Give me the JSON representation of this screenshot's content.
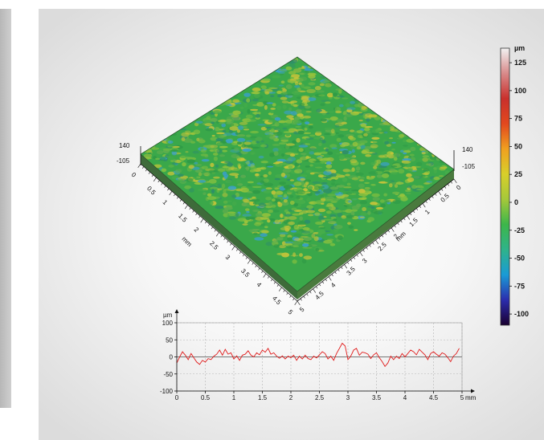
{
  "chart_data": [
    {
      "type": "heatmap",
      "subtype": "3d-surface-topography",
      "x_axis": {
        "label": "mm",
        "ticks": [
          "0",
          "0.5",
          "1",
          "1.5",
          "2",
          "2.5",
          "3",
          "3.5",
          "4",
          "4.5",
          "5"
        ],
        "range": [
          0,
          5
        ]
      },
      "y_axis": {
        "label": "mm",
        "ticks": [
          "0",
          "0.5",
          "1",
          "1.5",
          "2",
          "2.5",
          "3",
          "3.5",
          "4",
          "4.5",
          "5"
        ],
        "range": [
          0,
          5
        ]
      },
      "z_axis": {
        "max_label": "140",
        "min_label": "-105",
        "range": [
          -105,
          140
        ]
      },
      "colorbar": {
        "unit": "µm",
        "ticks": [
          "125",
          "100",
          "75",
          "50",
          "25",
          "0",
          "-25",
          "-50",
          "-75",
          "-100"
        ],
        "stops": [
          "#1a0030",
          "#2b2dae",
          "#1a9bd6",
          "#2fb38a",
          "#3db64a",
          "#a6c83a",
          "#d8cf2a",
          "#f0a020",
          "#e2481e",
          "#c9302c",
          "#d88a8a",
          "#f2f2f2"
        ]
      },
      "surface_colors": {
        "low": "#2f9fd0",
        "mid": "#3aa84a",
        "high": "#c8c43a"
      }
    },
    {
      "type": "line",
      "ylabel": "µm",
      "xunit": "mm",
      "xlim": [
        0,
        5
      ],
      "ylim": [
        -100,
        100
      ],
      "x_ticks": [
        "0",
        "0.5",
        "1",
        "1.5",
        "2",
        "2.5",
        "3",
        "3.5",
        "4",
        "4.5",
        "5"
      ],
      "y_ticks": [
        "100",
        "50",
        "0",
        "-50",
        "-100"
      ],
      "grid": true,
      "line_color": "#e01b1b",
      "x": [
        0.0,
        0.05,
        0.1,
        0.15,
        0.2,
        0.25,
        0.3,
        0.35,
        0.4,
        0.45,
        0.5,
        0.55,
        0.6,
        0.65,
        0.7,
        0.75,
        0.8,
        0.85,
        0.9,
        0.95,
        1.0,
        1.05,
        1.1,
        1.15,
        1.2,
        1.25,
        1.3,
        1.35,
        1.4,
        1.45,
        1.5,
        1.55,
        1.6,
        1.65,
        1.7,
        1.75,
        1.8,
        1.85,
        1.9,
        1.95,
        2.0,
        2.05,
        2.1,
        2.15,
        2.2,
        2.25,
        2.3,
        2.35,
        2.4,
        2.45,
        2.5,
        2.55,
        2.6,
        2.65,
        2.7,
        2.75,
        2.8,
        2.85,
        2.9,
        2.95,
        3.0,
        3.05,
        3.1,
        3.15,
        3.2,
        3.25,
        3.3,
        3.35,
        3.4,
        3.45,
        3.5,
        3.55,
        3.6,
        3.65,
        3.7,
        3.75,
        3.8,
        3.85,
        3.9,
        3.95,
        4.0,
        4.05,
        4.1,
        4.15,
        4.2,
        4.25,
        4.3,
        4.35,
        4.4,
        4.45,
        4.5,
        4.55,
        4.6,
        4.65,
        4.7,
        4.75,
        4.8,
        4.85,
        4.9,
        4.95
      ],
      "y": [
        -18,
        0,
        15,
        5,
        -8,
        10,
        -3,
        -15,
        -22,
        -10,
        -15,
        -5,
        -8,
        2,
        8,
        20,
        5,
        22,
        8,
        12,
        -6,
        3,
        -10,
        5,
        8,
        18,
        5,
        0,
        12,
        6,
        20,
        14,
        25,
        8,
        12,
        2,
        -4,
        3,
        -6,
        2,
        -2,
        5,
        -10,
        2,
        -6,
        5,
        -5,
        -8,
        2,
        -3,
        6,
        15,
        10,
        -6,
        2,
        -10,
        10,
        25,
        40,
        32,
        -8,
        2,
        20,
        25,
        5,
        14,
        12,
        8,
        -5,
        6,
        12,
        -2,
        -14,
        -28,
        -18,
        2,
        -8,
        2,
        -5,
        10,
        0,
        10,
        20,
        15,
        6,
        22,
        14,
        6,
        -8,
        10,
        15,
        8,
        2,
        12,
        8,
        -2,
        -14,
        2,
        10,
        25
      ]
    }
  ]
}
